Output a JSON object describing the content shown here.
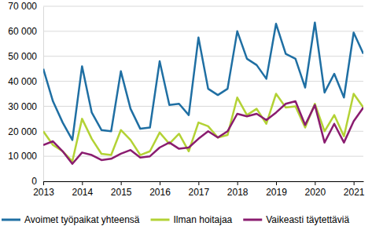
{
  "chart_data": {
    "type": "line",
    "categories": [
      "2013",
      null,
      null,
      null,
      "2014",
      null,
      null,
      null,
      "2015",
      null,
      null,
      null,
      "2016",
      null,
      null,
      null,
      "2017",
      null,
      null,
      null,
      "2018",
      null,
      null,
      null,
      "2019",
      null,
      null,
      null,
      "2020",
      null,
      null,
      null,
      "2021",
      null
    ],
    "series": [
      {
        "name": "Avoimet työpaikat yhteensä",
        "color": "#1f6fa3",
        "values": [
          45000,
          32000,
          23500,
          16500,
          46000,
          27500,
          20500,
          20000,
          44000,
          29000,
          21000,
          21500,
          48000,
          30500,
          31000,
          26500,
          57500,
          37000,
          34500,
          37000,
          60000,
          49000,
          46500,
          41000,
          63000,
          51000,
          49000,
          37500,
          63500,
          35500,
          43000,
          33500,
          59500,
          51000
        ]
      },
      {
        "name": "Ilman hoitajaa",
        "color": "#b3d235",
        "values": [
          20000,
          14500,
          12000,
          8000,
          25000,
          17000,
          11000,
          10500,
          20500,
          16500,
          10500,
          12000,
          19500,
          15000,
          19000,
          12000,
          23500,
          22000,
          17500,
          18500,
          33500,
          26500,
          29000,
          23000,
          35000,
          29500,
          30000,
          21500,
          31000,
          20000,
          26500,
          18000,
          35000,
          29500
        ]
      },
      {
        "name": "Vaikeasti täytettäviä",
        "color": "#8a1c6f",
        "values": [
          14500,
          16000,
          12000,
          7000,
          11500,
          10500,
          8500,
          9000,
          11000,
          12500,
          9500,
          10000,
          13500,
          15500,
          13000,
          13500,
          17000,
          20000,
          17500,
          20000,
          27000,
          26000,
          27000,
          24500,
          27500,
          31000,
          32000,
          22500,
          30500,
          15500,
          23000,
          15500,
          24000,
          29500
        ]
      }
    ],
    "ylim": [
      0,
      70000
    ],
    "yticks": [
      0,
      {
        "value": 10000,
        "label": "10 000"
      },
      {
        "value": 20000,
        "label": "20 000"
      },
      {
        "value": 30000,
        "label": "30 000"
      },
      {
        "value": 40000,
        "label": "40 000"
      },
      {
        "value": 50000,
        "label": "50 000"
      },
      {
        "value": 60000,
        "label": "60 000"
      },
      {
        "value": 70000,
        "label": "70 000"
      }
    ],
    "grid": true,
    "legend": "bottom"
  }
}
